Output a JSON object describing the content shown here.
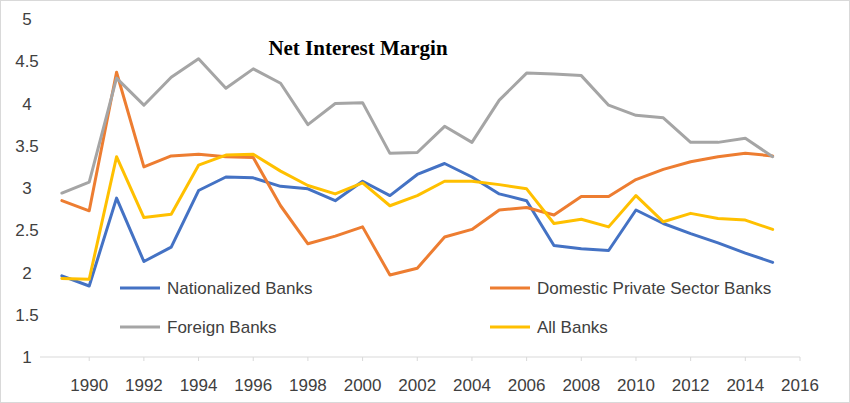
{
  "chart_data": {
    "type": "line",
    "title": "Net Interest Margin",
    "x": [
      1989,
      1990,
      1991,
      1992,
      1993,
      1994,
      1995,
      1996,
      1997,
      1998,
      1999,
      2000,
      2001,
      2002,
      2003,
      2004,
      2005,
      2006,
      2007,
      2008,
      2009,
      2010,
      2011,
      2012,
      2013,
      2014,
      2015
    ],
    "series": [
      {
        "name": "Nationalized Banks",
        "color": "#4472c4",
        "values": [
          1.96,
          1.84,
          2.88,
          2.13,
          2.3,
          2.97,
          3.13,
          3.12,
          3.02,
          2.99,
          2.85,
          3.08,
          2.91,
          3.16,
          3.29,
          3.13,
          2.93,
          2.85,
          2.32,
          2.28,
          2.26,
          2.74,
          2.58,
          2.46,
          2.35,
          2.23,
          2.12
        ]
      },
      {
        "name": "Domestic Private Sector Banks",
        "color": "#ed7d31",
        "values": [
          2.85,
          2.73,
          4.37,
          3.25,
          3.38,
          3.4,
          3.37,
          3.36,
          2.79,
          2.34,
          2.43,
          2.54,
          1.97,
          2.05,
          2.42,
          2.51,
          2.74,
          2.77,
          2.68,
          2.9,
          2.9,
          3.1,
          3.22,
          3.31,
          3.37,
          3.41,
          3.38
        ]
      },
      {
        "name": "Foreign Banks",
        "color": "#a5a5a5",
        "values": [
          2.94,
          3.07,
          4.3,
          3.98,
          4.31,
          4.53,
          4.18,
          4.41,
          4.24,
          3.75,
          4.0,
          4.01,
          3.41,
          3.42,
          3.73,
          3.54,
          4.04,
          4.36,
          4.35,
          4.33,
          3.98,
          3.86,
          3.83,
          3.54,
          3.54,
          3.59,
          3.37
        ]
      },
      {
        "name": "All Banks",
        "color": "#ffc000",
        "values": [
          1.93,
          1.92,
          3.37,
          2.65,
          2.69,
          3.27,
          3.39,
          3.4,
          3.2,
          3.03,
          2.93,
          3.06,
          2.79,
          2.91,
          3.08,
          3.08,
          3.04,
          2.99,
          2.58,
          2.63,
          2.54,
          2.91,
          2.6,
          2.7,
          2.64,
          2.62,
          2.51
        ]
      }
    ],
    "xlim": [
      1988.2,
      2016
    ],
    "xticks": [
      1990,
      1992,
      1994,
      1996,
      1998,
      2000,
      2002,
      2004,
      2006,
      2008,
      2010,
      2012,
      2014,
      2016
    ],
    "ylim": [
      1,
      5
    ],
    "yticks": [
      1,
      1.5,
      2,
      2.5,
      3,
      3.5,
      4,
      4.5,
      5
    ],
    "grid": false,
    "legend": "bottom"
  }
}
